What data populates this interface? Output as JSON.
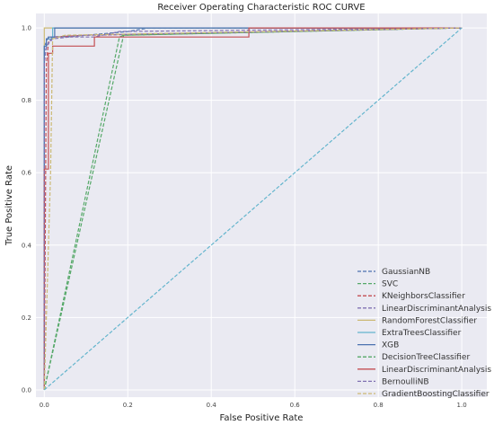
{
  "chart_data": {
    "type": "line",
    "title": "Receiver Operating Characteristic ROC CURVE",
    "xlabel": "False Positive Rate",
    "ylabel": "True Positive Rate",
    "xlim": [
      -0.02,
      1.06
    ],
    "ylim": [
      -0.02,
      1.04
    ],
    "xticks": [
      0.0,
      0.2,
      0.4,
      0.6,
      0.8,
      1.0
    ],
    "yticks": [
      0.0,
      0.2,
      0.4,
      0.6,
      0.8,
      1.0
    ],
    "xtick_labels": [
      "0.0",
      "0.2",
      "0.4",
      "0.6",
      "0.8",
      "1.0"
    ],
    "ytick_labels": [
      "0.0",
      "0.2",
      "0.4",
      "0.6",
      "0.8",
      "1.0"
    ],
    "grid": true,
    "legend_position": "bottom-right",
    "series": [
      {
        "name": "GaussianNB",
        "color": "#4c72b0",
        "dash": "dashed",
        "x": [
          0.0,
          0.0,
          0.005,
          0.01,
          0.02,
          0.1,
          0.2,
          0.25,
          1.0
        ],
        "y": [
          0.0,
          0.95,
          0.96,
          0.975,
          0.975,
          0.98,
          0.99,
          1.0,
          1.0
        ]
      },
      {
        "name": "SVC",
        "color": "#55a868",
        "dash": "dashed",
        "x": [
          0.0,
          0.18,
          0.19,
          1.0
        ],
        "y": [
          0.0,
          0.975,
          0.98,
          1.0
        ]
      },
      {
        "name": "KNeighborsClassifier",
        "color": "#c44e52",
        "dash": "dashed",
        "x": [
          0.0,
          0.005,
          0.01,
          0.02,
          0.1,
          1.0
        ],
        "y": [
          0.0,
          0.9,
          0.96,
          0.975,
          0.98,
          1.0
        ]
      },
      {
        "name": "LinearDiscriminantAnalysis",
        "color": "#8172b2",
        "dash": "dashed",
        "x": [
          0.0,
          0.0,
          0.01,
          0.02,
          0.12,
          0.18,
          1.0
        ],
        "y": [
          0.0,
          0.93,
          0.96,
          0.975,
          0.975,
          0.99,
          1.0
        ]
      },
      {
        "name": "RandomForestClassifier",
        "color": "#ccb974",
        "dash": "solid",
        "x": [
          0.0,
          0.0,
          1.0
        ],
        "y": [
          0.0,
          1.0,
          1.0
        ]
      },
      {
        "name": "ExtraTreesClassifier",
        "color": "#64b5cd",
        "dash": "solid",
        "x": [
          0.0,
          0.0,
          0.005,
          0.005,
          0.02,
          0.02,
          1.0
        ],
        "y": [
          0.0,
          0.95,
          0.95,
          0.97,
          0.97,
          1.0,
          1.0
        ]
      },
      {
        "name": "XGB",
        "color": "#4c72b0",
        "dash": "solid",
        "x": [
          0.0,
          0.0,
          0.005,
          0.005,
          0.01,
          0.01,
          0.025,
          0.025,
          1.0
        ],
        "y": [
          0.0,
          0.95,
          0.95,
          0.97,
          0.97,
          0.975,
          0.975,
          1.0,
          1.0
        ]
      },
      {
        "name": "DecisionTreeClassifier",
        "color": "#55a868",
        "dash": "dashed",
        "x": [
          0.0,
          0.19,
          1.0
        ],
        "y": [
          0.0,
          0.98,
          1.0
        ]
      },
      {
        "name": "LinearDiscriminantAnalysis",
        "color": "#c44e52",
        "dash": "solid",
        "x": [
          0.0,
          0.0,
          0.01,
          0.01,
          0.02,
          0.02,
          0.04,
          0.04,
          0.12,
          0.12,
          0.49,
          0.49,
          1.0
        ],
        "y": [
          0.0,
          0.61,
          0.61,
          0.93,
          0.93,
          0.95,
          0.95,
          0.95,
          0.95,
          0.975,
          0.975,
          1.0,
          1.0
        ]
      },
      {
        "name": "BernoulliNB",
        "color": "#8172b2",
        "dash": "dashed",
        "x": [
          0.0,
          0.0,
          0.005,
          0.02,
          0.1,
          1.0
        ],
        "y": [
          0.0,
          0.9,
          0.95,
          0.97,
          0.98,
          1.0
        ]
      },
      {
        "name": "GradientBoostingClassifier",
        "color": "#ccb974",
        "dash": "dashed",
        "x": [
          0.0,
          0.015,
          0.02,
          0.05,
          1.0
        ],
        "y": [
          0.0,
          0.6,
          0.97,
          0.98,
          1.0
        ]
      },
      {
        "name": "",
        "color": "#64b5cd",
        "dash": "dashed",
        "legend": false,
        "x": [
          0.0,
          1.0
        ],
        "y": [
          0.0,
          1.0
        ]
      }
    ]
  }
}
